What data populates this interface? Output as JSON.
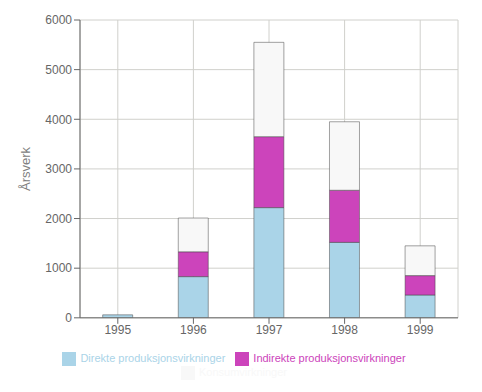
{
  "chart_data": {
    "type": "bar",
    "stacked": true,
    "categories": [
      "1995",
      "1996",
      "1997",
      "1998",
      "1999"
    ],
    "series": [
      {
        "name": "Direkte produksjonsvirkninger",
        "color": "#aad4e8",
        "values": [
          60,
          830,
          2220,
          1520,
          460
        ]
      },
      {
        "name": "Indirekte produksjonsvirkninger",
        "color": "#cc44bb",
        "values": [
          0,
          500,
          1430,
          1050,
          390
        ]
      },
      {
        "name": "Konsumvirkninger",
        "color": "#f8f8f8",
        "values": [
          0,
          680,
          1900,
          1380,
          600
        ]
      }
    ],
    "ylabel": "Årsverk",
    "ylim": [
      0,
      6000
    ],
    "yticks": [
      0,
      1000,
      2000,
      3000,
      4000,
      5000,
      6000
    ],
    "grid": true,
    "legend": "bottom"
  }
}
